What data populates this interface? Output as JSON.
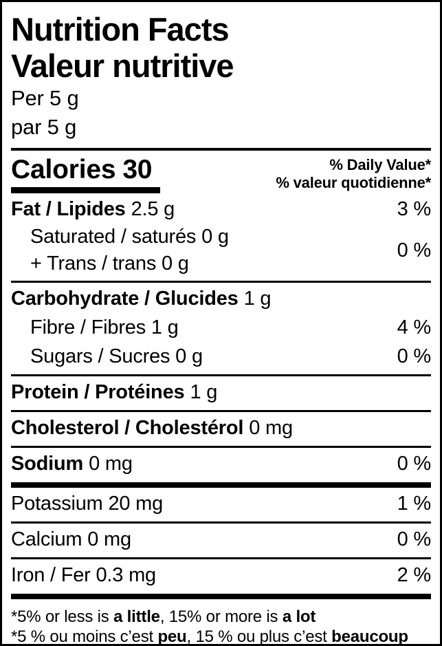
{
  "label": {
    "title_en": "Nutrition Facts",
    "title_fr": "Valeur nutritive",
    "serving_en": "Per 5 g",
    "serving_fr": "par 5 g",
    "calories_label": "Calories",
    "calories_value": "30",
    "dv_header_en": "% Daily Value*",
    "dv_header_fr": "% valeur quotidienne*",
    "nutrients": {
      "fat": {
        "label": "Fat / Lipides",
        "amount": "2.5 g",
        "percent": "3 %"
      },
      "saturated": {
        "text": "Saturated / saturés 0 g"
      },
      "trans": {
        "text": "+ Trans / trans 0 g"
      },
      "sat_trans_percent": "0 %",
      "carbohydrate": {
        "label": "Carbohydrate / Glucides",
        "amount": "1 g"
      },
      "fibre": {
        "text": "Fibre / Fibres 1 g",
        "percent": "4 %"
      },
      "sugars": {
        "text": "Sugars / Sucres 0 g",
        "percent": "0 %"
      },
      "protein": {
        "label": "Protein / Protéines",
        "amount": "1 g"
      },
      "cholesterol": {
        "label": "Cholesterol / Cholestérol",
        "amount": "0 mg"
      },
      "sodium": {
        "label": "Sodium",
        "amount": "0 mg",
        "percent": "0 %"
      },
      "potassium": {
        "text": "Potassium 20 mg",
        "percent": "1 %"
      },
      "calcium": {
        "text": "Calcium 0 mg",
        "percent": "0 %"
      },
      "iron": {
        "text": "Iron / Fer 0.3 mg",
        "percent": "2 %"
      }
    },
    "footnote_en": {
      "part1": "*5% or less is ",
      "bold1": "a little",
      "part2": ", 15% or more is ",
      "bold2": "a lot"
    },
    "footnote_fr": {
      "part1": "*5 % ou moins c’est ",
      "bold1": "peu",
      "part2": ", 15 % ou plus c’est ",
      "bold2": "beaucoup"
    }
  },
  "colors": {
    "text": "#000000",
    "background": "#ffffff",
    "border": "#000000"
  }
}
